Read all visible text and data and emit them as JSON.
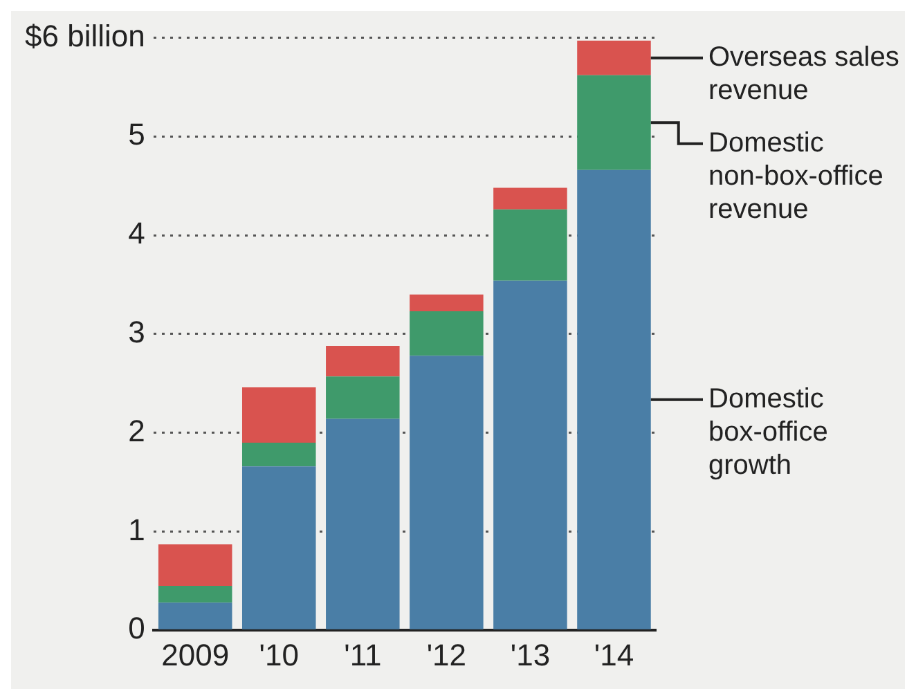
{
  "chart_data": {
    "type": "bar",
    "stacked": true,
    "categories": [
      "2009",
      "'10",
      "'11",
      "'12",
      "'13",
      "'14"
    ],
    "series": [
      {
        "name": "Domestic box-office growth",
        "color": "#4a7ea6",
        "values": [
          0.28,
          1.66,
          2.14,
          2.78,
          3.54,
          4.66
        ]
      },
      {
        "name": "Domestic non-box-office revenue",
        "color": "#3f9a6b",
        "values": [
          0.17,
          0.24,
          0.43,
          0.45,
          0.72,
          0.96
        ]
      },
      {
        "name": "Overseas sales revenue",
        "color": "#d9534f",
        "values": [
          0.42,
          0.56,
          0.31,
          0.17,
          0.22,
          0.35
        ]
      }
    ],
    "ylim": [
      0,
      6
    ],
    "yticks": [
      0,
      1,
      2,
      3,
      4,
      5,
      {
        "value": 6,
        "label": "$6 billion"
      }
    ],
    "grid": "y",
    "line_style": "dotted",
    "legend": "right"
  }
}
